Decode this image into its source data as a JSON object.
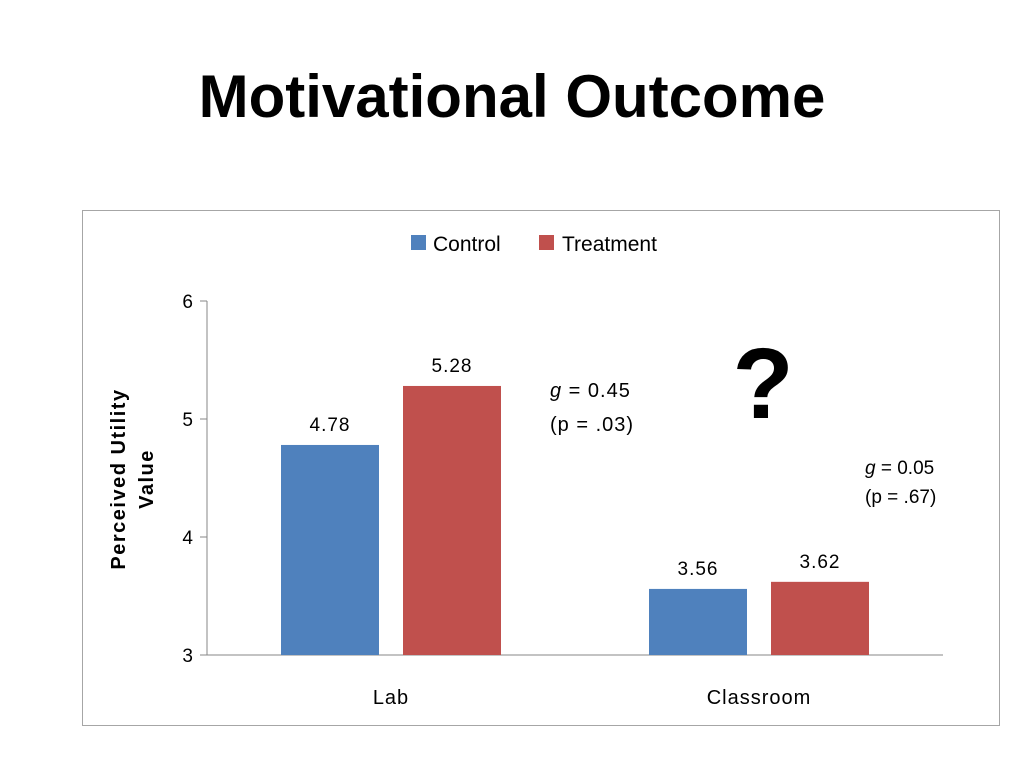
{
  "slide": {
    "title": "Motivational Outcome"
  },
  "colors": {
    "control": "#4f81bd",
    "treatment": "#c0504d",
    "axis": "#878787"
  },
  "chart_data": {
    "type": "bar",
    "categories": [
      "Lab",
      "Classroom"
    ],
    "series": [
      {
        "name": "Control",
        "values": [
          4.78,
          3.56
        ],
        "labels": [
          "4.78",
          "3.56"
        ]
      },
      {
        "name": "Treatment",
        "values": [
          5.28,
          3.62
        ],
        "labels": [
          "5.28",
          "3.62"
        ]
      }
    ],
    "ylabel": [
      "Perceived Utility",
      "Value"
    ],
    "ylim": [
      3,
      6
    ],
    "yticks": [
      3,
      4,
      5,
      6
    ],
    "ytick_labels": [
      "3",
      "4",
      "5",
      "6"
    ],
    "legend": "top-center",
    "grid": false,
    "annotations": {
      "lab": {
        "g_symbol": "g",
        "g_text": " = 0.45",
        "p_text": "(p = .03)"
      },
      "classroom": {
        "g_symbol": "g",
        "g_text": " = 0.05",
        "p_text": "(p = .67)"
      },
      "question_mark": "?"
    }
  }
}
